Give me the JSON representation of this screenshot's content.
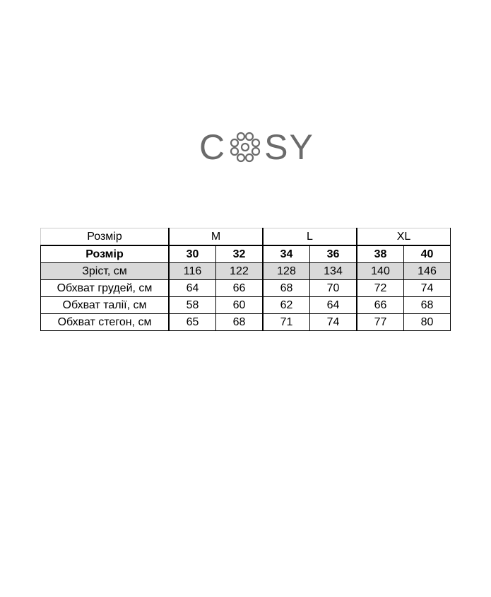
{
  "logo": {
    "text": "COSY",
    "color": "#6b6b6b"
  },
  "table": {
    "group_header": {
      "label": "Розмір",
      "groups": [
        "M",
        "L",
        "XL"
      ]
    },
    "size_row": {
      "label": "Розмір",
      "values": [
        "30",
        "32",
        "34",
        "36",
        "38",
        "40"
      ]
    },
    "rows": [
      {
        "label": "Зріст, см",
        "values": [
          "116",
          "122",
          "128",
          "134",
          "140",
          "146"
        ],
        "highlight": "#d9d9d9"
      },
      {
        "label": "Обхват грудей, см",
        "values": [
          "64",
          "66",
          "68",
          "70",
          "72",
          "74"
        ]
      },
      {
        "label": "Обхват талії, см",
        "values": [
          "58",
          "60",
          "62",
          "64",
          "66",
          "68"
        ]
      },
      {
        "label": "Обхват стегон, см",
        "values": [
          "65",
          "68",
          "71",
          "74",
          "77",
          "80"
        ]
      }
    ]
  }
}
